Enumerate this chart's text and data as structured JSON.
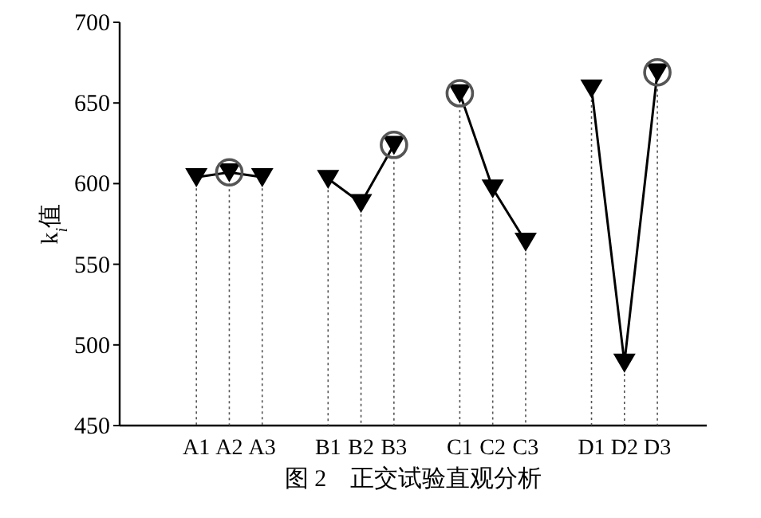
{
  "chart_data": {
    "type": "line",
    "ylabel": "k$_{i}$值",
    "categories": [
      "A1",
      "A2",
      "A3",
      null,
      "B1",
      "B2",
      "B3",
      null,
      "C1",
      "C2",
      "C3",
      null,
      "D1",
      "D2",
      "D3"
    ],
    "series": [
      {
        "type": "lollipop",
        "marker": "triangle",
        "color": "#000000",
        "values": [
          604,
          607,
          604,
          null,
          603,
          588,
          624,
          null,
          656,
          597,
          564,
          null,
          659,
          489,
          669
        ]
      },
      {
        "color": "#000000",
        "values": [
          604,
          607,
          604,
          null,
          null,
          null,
          null,
          null,
          null,
          null,
          null,
          null,
          null,
          null,
          null
        ]
      },
      {
        "color": "#000000",
        "values": [
          null,
          null,
          null,
          null,
          603,
          588,
          624,
          null,
          null,
          null,
          null,
          null,
          null,
          null,
          null
        ]
      },
      {
        "color": "#000000",
        "values": [
          null,
          null,
          null,
          null,
          null,
          null,
          null,
          null,
          656,
          597,
          564,
          null,
          null,
          null,
          null
        ]
      },
      {
        "color": "#000000",
        "values": [
          null,
          null,
          null,
          null,
          null,
          null,
          null,
          null,
          null,
          null,
          null,
          null,
          659,
          489,
          669
        ]
      },
      {
        "type": "scatter",
        "marker": "circle",
        "color": "#555555",
        "values": [
          null,
          607,
          null,
          null,
          null,
          null,
          624,
          null,
          656,
          null,
          null,
          null,
          null,
          null,
          669
        ]
      }
    ],
    "marker": "none",
    "line_style": "solid",
    "grid": "x",
    "ylim": [
      450,
      700
    ],
    "yticks": [
      450,
      500,
      550,
      600,
      650,
      700
    ],
    "annotations": [
      "图 2　正交试验直观分析"
    ]
  }
}
